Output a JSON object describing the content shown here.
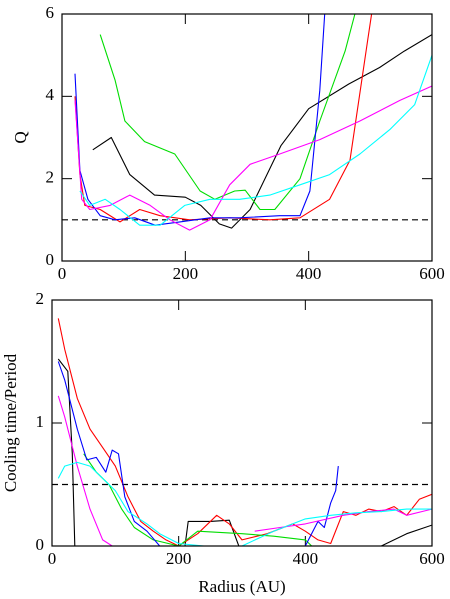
{
  "chart_data": [
    {
      "type": "line",
      "ylabel": "Q",
      "xlim": [
        0,
        600
      ],
      "ylim": [
        0,
        6
      ],
      "xticks": [
        0,
        200,
        400,
        600
      ],
      "yticks": [
        0,
        2,
        4,
        6
      ],
      "hline": 1,
      "series": [
        {
          "color": "#000000",
          "x": [
            50,
            80,
            110,
            150,
            200,
            225,
            255,
            275,
            305,
            355,
            400,
            465,
            515,
            555,
            600
          ],
          "values": [
            2.7,
            3.0,
            2.1,
            1.6,
            1.55,
            1.35,
            0.9,
            0.8,
            1.25,
            2.8,
            3.7,
            4.3,
            4.7,
            5.1,
            5.5
          ]
        },
        {
          "color": "#ff0000",
          "x": [
            21,
            29,
            37,
            62,
            94,
            126,
            159,
            207,
            272,
            337,
            386,
            434,
            467,
            496,
            502
          ],
          "values": [
            4.0,
            2.1,
            1.35,
            1.25,
            0.95,
            1.25,
            1.1,
            1.0,
            1.05,
            1.0,
            1.05,
            1.5,
            2.45,
            5.4,
            6.0
          ]
        },
        {
          "color": "#00dd00",
          "x": [
            62,
            86,
            102,
            134,
            183,
            224,
            248,
            280,
            297,
            321,
            345,
            386,
            418,
            459,
            475
          ],
          "values": [
            5.5,
            4.4,
            3.4,
            2.9,
            2.6,
            1.7,
            1.5,
            1.7,
            1.72,
            1.25,
            1.25,
            2.0,
            3.4,
            5.1,
            6.0
          ]
        },
        {
          "color": "#0000ff",
          "x": [
            21,
            29,
            42,
            62,
            86,
            118,
            151,
            191,
            240,
            288,
            353,
            386,
            402,
            418,
            426
          ],
          "values": [
            4.55,
            2.2,
            1.5,
            1.1,
            1.0,
            1.05,
            0.87,
            0.95,
            1.05,
            1.05,
            1.1,
            1.1,
            1.7,
            4.15,
            6.0
          ]
        },
        {
          "color": "#ff00ff",
          "x": [
            21,
            32,
            45,
            78,
            110,
            143,
            175,
            207,
            240,
            272,
            305,
            353,
            418,
            483,
            548,
            600
          ],
          "values": [
            3.9,
            1.5,
            1.25,
            1.35,
            1.6,
            1.35,
            1.0,
            0.75,
            1.0,
            1.85,
            2.35,
            2.6,
            2.95,
            3.4,
            3.9,
            4.25
          ]
        },
        {
          "color": "#00ffff",
          "x": [
            29,
            45,
            70,
            94,
            126,
            159,
            199,
            240,
            288,
            337,
            386,
            434,
            483,
            532,
            572,
            600
          ],
          "values": [
            1.7,
            1.35,
            1.5,
            1.25,
            0.87,
            0.87,
            1.35,
            1.5,
            1.5,
            1.6,
            1.85,
            2.1,
            2.6,
            3.2,
            3.8,
            5.0
          ]
        }
      ]
    },
    {
      "type": "line",
      "ylabel": "Cooling time/Period",
      "xlabel": "Radius (AU)",
      "xlim": [
        0,
        600
      ],
      "ylim": [
        0,
        2
      ],
      "xticks": [
        0,
        200,
        400,
        600
      ],
      "yticks": [
        0,
        1,
        2
      ],
      "hline": 0.5,
      "series": [
        {
          "color": "#000000",
          "x": [
            10,
            25,
            32,
            36,
            150,
            210,
            215,
            250,
            280,
            295,
            400,
            520,
            560,
            600
          ],
          "values": [
            1.52,
            1.42,
            0.75,
            0,
            null,
            0,
            0.2,
            0.2,
            0.21,
            0,
            null,
            0,
            0.1,
            0.17
          ]
        },
        {
          "color": "#ff0000",
          "x": [
            10,
            20,
            40,
            60,
            80,
            100,
            120,
            140,
            160,
            180,
            200,
            230,
            260,
            280,
            300,
            340,
            380,
            400,
            420,
            440,
            460,
            480,
            500,
            520,
            540,
            560,
            580,
            600
          ],
          "values": [
            1.85,
            1.6,
            1.2,
            0.95,
            0.8,
            0.65,
            0.4,
            0.2,
            0.12,
            0.05,
            0,
            0.1,
            0.25,
            0.18,
            0.05,
            0.1,
            0.18,
            0.12,
            0.05,
            0.02,
            0.28,
            0.25,
            0.3,
            0.28,
            0.32,
            0.25,
            0.38,
            0.42
          ]
        },
        {
          "color": "#00dd00",
          "x": [
            50,
            70,
            90,
            110,
            130,
            160,
            200,
            230,
            300,
            350,
            400,
            410
          ],
          "values": [
            0.75,
            0.6,
            0.5,
            0.3,
            0.15,
            0.05,
            0,
            0.12,
            0.1,
            0.08,
            0.05,
            0
          ]
        },
        {
          "color": "#0000ff",
          "x": [
            10,
            20,
            40,
            55,
            70,
            85,
            95,
            105,
            115,
            130,
            150,
            170,
            200,
            400,
            420,
            430,
            440,
            448,
            452
          ],
          "values": [
            1.5,
            1.35,
            0.95,
            0.7,
            0.72,
            0.6,
            0.78,
            0.75,
            0.4,
            0.2,
            0.12,
            0,
            0,
            0,
            0.2,
            0.15,
            0.35,
            0.45,
            0.65
          ]
        },
        {
          "color": "#ff00ff",
          "x": [
            10,
            20,
            40,
            60,
            80,
            95,
            200,
            320,
            360,
            400,
            460,
            500,
            540,
            560,
            600
          ],
          "values": [
            1.22,
            1.05,
            0.65,
            0.3,
            0.05,
            0,
            null,
            0.12,
            0.15,
            0.18,
            0.25,
            0.28,
            0.3,
            0.25,
            0.3
          ]
        },
        {
          "color": "#00ffff",
          "x": [
            10,
            20,
            40,
            60,
            80,
            100,
            120,
            150,
            170,
            200,
            240,
            300,
            350,
            400,
            440,
            480,
            520,
            560,
            600
          ],
          "values": [
            0.55,
            0.65,
            0.68,
            0.65,
            0.55,
            0.45,
            0.28,
            0.18,
            0.1,
            0.02,
            0,
            0,
            0.12,
            0.22,
            0.25,
            0.27,
            0.28,
            0.3,
            0.3
          ]
        }
      ]
    }
  ]
}
